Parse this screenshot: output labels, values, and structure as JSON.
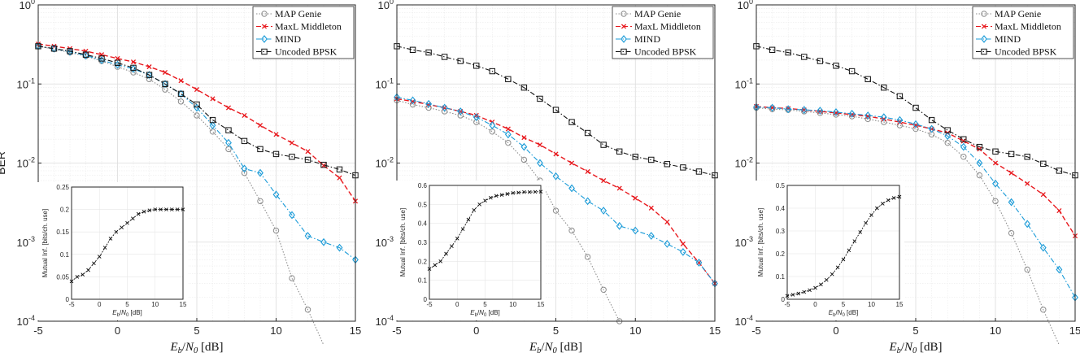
{
  "chart_data": [
    {
      "type": "line",
      "xlabel": "E_b/N_0 [dB]",
      "ylabel": "BER",
      "xlim": [
        -5,
        15
      ],
      "ylim": [
        0.0001,
        1
      ],
      "yscale": "log",
      "x_ticks": [
        "-5",
        "0",
        "5",
        "10",
        "15"
      ],
      "y_ticks": [
        "10^0",
        "10^-1",
        "10^-2",
        "10^-3",
        "10^-4"
      ],
      "grid": true,
      "legend_position": "top-right",
      "x": [
        -5,
        -4,
        -3,
        -2,
        -1,
        0,
        1,
        2,
        3,
        4,
        5,
        6,
        7,
        8,
        9,
        10,
        11,
        12,
        13,
        14,
        15
      ],
      "series": [
        {
          "name": "MAP Genie",
          "color": "#8c8c8c",
          "marker": "circle",
          "dash": "dot",
          "values": [
            0.3,
            0.275,
            0.25,
            0.225,
            0.195,
            0.165,
            0.14,
            0.115,
            0.085,
            0.06,
            0.04,
            0.025,
            0.015,
            0.0075,
            0.0033,
            0.0014,
            0.00035,
            0.00014,
            5e-05,
            null,
            null
          ]
        },
        {
          "name": "MaxL Middleton",
          "color": "#e8181d",
          "marker": "x",
          "dash": "dash",
          "values": [
            0.32,
            0.3,
            0.28,
            0.26,
            0.235,
            0.21,
            0.19,
            0.165,
            0.14,
            0.11,
            0.085,
            0.065,
            0.05,
            0.04,
            0.03,
            0.023,
            0.018,
            0.014,
            0.0093,
            0.0065,
            0.0033
          ]
        },
        {
          "name": "MIND",
          "color": "#1a9bd8",
          "marker": "diamond",
          "dash": "dashdot",
          "values": [
            0.3,
            0.28,
            0.255,
            0.23,
            0.2,
            0.175,
            0.155,
            0.13,
            0.1,
            0.075,
            0.05,
            0.03,
            0.018,
            0.0085,
            0.0075,
            0.004,
            0.0022,
            0.0012,
            0.001,
            0.00085,
            0.0006
          ]
        },
        {
          "name": "Uncoded BPSK",
          "color": "#111111",
          "marker": "square",
          "dash": "dashdot",
          "values": [
            0.3,
            0.28,
            0.26,
            0.235,
            0.21,
            0.185,
            0.16,
            0.13,
            0.1,
            0.075,
            0.055,
            0.035,
            0.026,
            0.019,
            0.015,
            0.013,
            0.012,
            0.011,
            0.0095,
            0.0083,
            0.007
          ]
        }
      ],
      "inset": {
        "type": "line",
        "xlabel": "E_b/N_0 [dB]",
        "ylabel": "Mutual Inf. [bits/ch. use]",
        "xlim": [
          -5,
          15
        ],
        "ylim": [
          0,
          0.25
        ],
        "x_ticks": [
          "-5",
          "0",
          "5",
          "10",
          "15"
        ],
        "y_ticks": [
          "0",
          "0.05",
          "0.1",
          "0.15",
          "0.2",
          "0.25"
        ],
        "x": [
          -5,
          -4,
          -3,
          -2,
          -1,
          0,
          1,
          2,
          3,
          4,
          5,
          6,
          7,
          8,
          9,
          10,
          11,
          12,
          13,
          14,
          15
        ],
        "values": [
          0.04,
          0.05,
          0.055,
          0.065,
          0.08,
          0.095,
          0.115,
          0.135,
          0.15,
          0.16,
          0.17,
          0.18,
          0.19,
          0.195,
          0.198,
          0.2,
          0.2,
          0.2,
          0.2,
          0.2,
          0.2
        ]
      }
    },
    {
      "type": "line",
      "xlabel": "E_b/N_0 [dB]",
      "ylabel": "",
      "xlim": [
        -5,
        15
      ],
      "ylim": [
        0.0001,
        1
      ],
      "yscale": "log",
      "x_ticks": [
        "-5",
        "0",
        "5",
        "10",
        "15"
      ],
      "y_ticks": [
        "10^0",
        "10^-1",
        "10^-2",
        "10^-3",
        "10^-4"
      ],
      "grid": true,
      "legend_position": "top-right",
      "x": [
        -5,
        -4,
        -3,
        -2,
        -1,
        0,
        1,
        2,
        3,
        4,
        5,
        6,
        7,
        8,
        9,
        10,
        11,
        12,
        13,
        14,
        15
      ],
      "series": [
        {
          "name": "MAP Genie",
          "color": "#8c8c8c",
          "marker": "circle",
          "dash": "dot",
          "values": [
            0.062,
            0.055,
            0.05,
            0.045,
            0.04,
            0.033,
            0.025,
            0.018,
            0.011,
            0.006,
            0.0025,
            0.0014,
            0.00065,
            0.00025,
            0.0001,
            null,
            null,
            null,
            null,
            null,
            null
          ]
        },
        {
          "name": "MaxL Middleton",
          "color": "#e8181d",
          "marker": "x",
          "dash": "dash",
          "values": [
            0.065,
            0.06,
            0.055,
            0.05,
            0.045,
            0.04,
            0.033,
            0.027,
            0.021,
            0.017,
            0.013,
            0.01,
            0.0078,
            0.006,
            0.0048,
            0.0036,
            0.0027,
            0.0018,
            0.00095,
            0.00055,
            0.0003
          ]
        },
        {
          "name": "MIND",
          "color": "#1a9bd8",
          "marker": "diamond",
          "dash": "dashdot",
          "values": [
            0.068,
            0.062,
            0.056,
            0.05,
            0.045,
            0.038,
            0.03,
            0.023,
            0.016,
            0.01,
            0.0068,
            0.0048,
            0.0033,
            0.0025,
            0.0016,
            0.0014,
            0.0012,
            0.00095,
            0.00075,
            0.00055,
            0.0003
          ]
        },
        {
          "name": "Uncoded BPSK",
          "color": "#111111",
          "marker": "square",
          "dash": "dashdot",
          "values": [
            0.3,
            0.27,
            0.25,
            0.22,
            0.195,
            0.17,
            0.145,
            0.115,
            0.09,
            0.065,
            0.047,
            0.033,
            0.024,
            0.017,
            0.014,
            0.012,
            0.011,
            0.0097,
            0.0088,
            0.0078,
            0.007
          ]
        }
      ],
      "inset": {
        "type": "line",
        "xlabel": "E_b/N_0 [dB]",
        "ylabel": "Mutual Inf. [bits/ch. use]",
        "xlim": [
          -5,
          15
        ],
        "ylim": [
          0,
          0.6
        ],
        "x_ticks": [
          "-5",
          "0",
          "5",
          "10",
          "15"
        ],
        "y_ticks": [
          "0",
          "0.1",
          "0.2",
          "0.3",
          "0.4",
          "0.5",
          "0.6"
        ],
        "x": [
          -5,
          -4,
          -3,
          -2,
          -1,
          0,
          1,
          2,
          3,
          4,
          5,
          6,
          7,
          8,
          9,
          10,
          11,
          12,
          13,
          14,
          15
        ],
        "values": [
          0.16,
          0.18,
          0.2,
          0.24,
          0.28,
          0.32,
          0.37,
          0.42,
          0.47,
          0.5,
          0.52,
          0.535,
          0.545,
          0.55,
          0.555,
          0.56,
          0.562,
          0.565,
          0.565,
          0.566,
          0.567
        ]
      }
    },
    {
      "type": "line",
      "xlabel": "E_b/N_0 [dB]",
      "ylabel": "",
      "xlim": [
        -5,
        15
      ],
      "ylim": [
        0.0001,
        1
      ],
      "yscale": "log",
      "x_ticks": [
        "-5",
        "0",
        "5",
        "10",
        "15"
      ],
      "y_ticks": [
        "10^0",
        "10^-1",
        "10^-2",
        "10^-3",
        "10^-4"
      ],
      "grid": true,
      "legend_position": "top-right",
      "x": [
        -5,
        -4,
        -3,
        -2,
        -1,
        0,
        1,
        2,
        3,
        4,
        5,
        6,
        7,
        8,
        9,
        10,
        11,
        12,
        13,
        14,
        15
      ],
      "series": [
        {
          "name": "MAP Genie",
          "color": "#8c8c8c",
          "marker": "circle",
          "dash": "dot",
          "values": [
            0.05,
            0.048,
            0.047,
            0.045,
            0.043,
            0.041,
            0.039,
            0.036,
            0.033,
            0.03,
            0.027,
            0.023,
            0.018,
            0.012,
            0.007,
            0.0033,
            0.0013,
            0.00045,
            0.00014,
            5e-05,
            null
          ]
        },
        {
          "name": "MaxL Middleton",
          "color": "#e8181d",
          "marker": "x",
          "dash": "dash",
          "values": [
            0.052,
            0.05,
            0.049,
            0.047,
            0.045,
            0.043,
            0.041,
            0.039,
            0.036,
            0.033,
            0.03,
            0.027,
            0.024,
            0.019,
            0.015,
            0.01,
            0.0075,
            0.0055,
            0.004,
            0.0025,
            0.0012
          ]
        },
        {
          "name": "MIND",
          "color": "#1a9bd8",
          "marker": "diamond",
          "dash": "dashdot",
          "values": [
            0.051,
            0.05,
            0.048,
            0.047,
            0.046,
            0.044,
            0.042,
            0.04,
            0.038,
            0.035,
            0.031,
            0.027,
            0.022,
            0.016,
            0.01,
            0.0055,
            0.0032,
            0.0017,
            0.00085,
            0.00045,
            0.0002
          ]
        },
        {
          "name": "Uncoded BPSK",
          "color": "#111111",
          "marker": "square",
          "dash": "dashdot",
          "values": [
            0.3,
            0.27,
            0.25,
            0.22,
            0.195,
            0.17,
            0.145,
            0.115,
            0.09,
            0.07,
            0.05,
            0.035,
            0.026,
            0.02,
            0.016,
            0.014,
            0.013,
            0.012,
            0.0098,
            0.008,
            0.007
          ]
        }
      ],
      "inset": {
        "type": "line",
        "xlabel": "E_b/N_0 [dB]",
        "ylabel": "Mutual Inf. [bits/ch. use]",
        "xlim": [
          -5,
          15
        ],
        "ylim": [
          0,
          0.5
        ],
        "x_ticks": [
          "-5",
          "0",
          "5",
          "10",
          "15"
        ],
        "y_ticks": [
          "0",
          "0.1",
          "0.2",
          "0.3",
          "0.4",
          "0.5"
        ],
        "x": [
          -5,
          -4,
          -3,
          -2,
          -1,
          0,
          1,
          2,
          3,
          4,
          5,
          6,
          7,
          8,
          9,
          10,
          11,
          12,
          13,
          14,
          15
        ],
        "values": [
          0.015,
          0.02,
          0.025,
          0.032,
          0.04,
          0.05,
          0.065,
          0.085,
          0.11,
          0.14,
          0.175,
          0.215,
          0.255,
          0.295,
          0.335,
          0.37,
          0.4,
          0.42,
          0.435,
          0.445,
          0.45
        ]
      }
    }
  ]
}
